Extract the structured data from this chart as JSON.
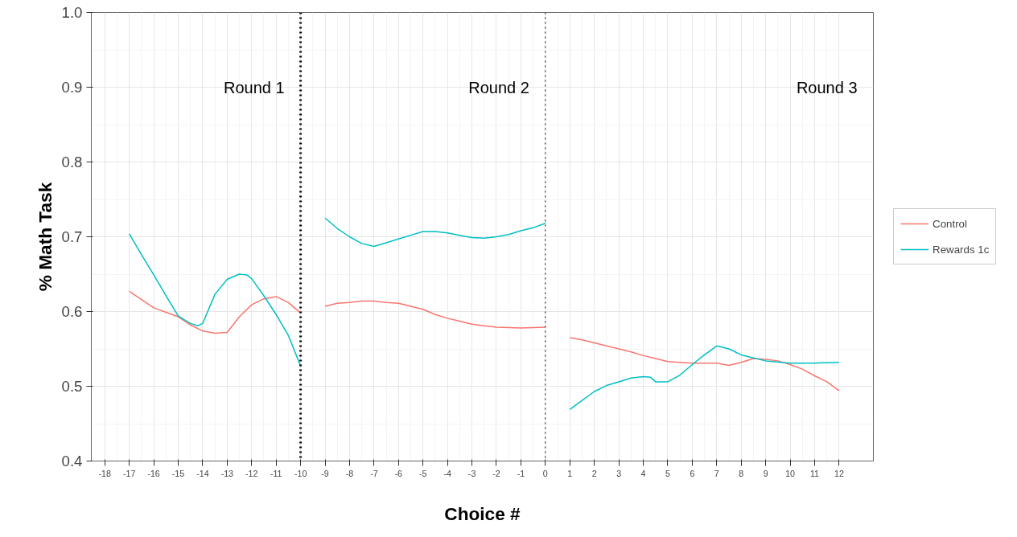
{
  "chart_data": {
    "type": "line",
    "xlabel": "Choice #",
    "ylabel": "% Math Task",
    "xlim": [
      -18.55,
      13.4
    ],
    "ylim": [
      0.4,
      1.0
    ],
    "xticks": [
      -18,
      -17,
      -16,
      -15,
      -14,
      -13,
      -12,
      -11,
      -10,
      -9,
      -8,
      -7,
      -6,
      -5,
      -4,
      -3,
      -2,
      -1,
      0,
      1,
      2,
      3,
      4,
      5,
      6,
      7,
      8,
      9,
      10,
      11,
      12
    ],
    "yticks": [
      {
        "value": 0.4,
        "label": "0.4"
      },
      {
        "value": 0.5,
        "label": "0.5"
      },
      {
        "value": 0.6,
        "label": "0.6"
      },
      {
        "value": 0.7,
        "label": "0.7"
      },
      {
        "value": 0.8,
        "label": "0.8"
      },
      {
        "value": 0.9,
        "label": "0.9"
      },
      {
        "value": 1.0,
        "label": "1.0"
      }
    ],
    "grid": true,
    "legend": "right",
    "line_style": "solid",
    "series": [
      {
        "name": "Control",
        "color": "#f8766d",
        "x": [
          -17,
          -16.5,
          -16,
          -15.5,
          -15,
          -14.5,
          -14,
          -13.5,
          -13,
          -12.5,
          -12,
          -11.5,
          -11,
          -10.5,
          -10,
          -9.5,
          -9,
          -8.5,
          -8,
          -7.5,
          -7,
          -6.5,
          -6,
          -5.5,
          -5,
          -4.5,
          -4,
          -3.5,
          -3,
          -2.5,
          -2,
          -1,
          0,
          0.5,
          1,
          1.5,
          2,
          2.5,
          3,
          3.5,
          4,
          4.5,
          5,
          5.5,
          6,
          7,
          7.5,
          8,
          8.5,
          9,
          9.5,
          10,
          10.5,
          11,
          11.5,
          12
        ],
        "values": [
          0.627,
          0.616,
          0.605,
          0.599,
          0.593,
          0.582,
          0.574,
          0.571,
          0.572,
          0.593,
          0.609,
          0.617,
          0.62,
          0.612,
          0.598,
          null,
          0.607,
          0.611,
          0.612,
          0.614,
          0.614,
          0.612,
          0.611,
          0.607,
          0.603,
          0.596,
          0.591,
          0.587,
          0.583,
          0.581,
          0.579,
          0.578,
          0.579,
          null,
          0.565,
          0.562,
          0.558,
          0.554,
          0.55,
          0.546,
          0.541,
          0.537,
          0.533,
          0.532,
          0.531,
          0.531,
          0.528,
          0.532,
          0.537,
          0.536,
          0.534,
          0.529,
          0.523,
          0.514,
          0.506,
          0.494
        ]
      },
      {
        "name": "Rewards 1c",
        "color": "#00bfc4",
        "x": [
          -17,
          -16.5,
          -16,
          -15.5,
          -15,
          -14.5,
          -14.2,
          -14,
          -13.5,
          -13,
          -12.5,
          -12.2,
          -12,
          -11.5,
          -11,
          -10.5,
          -10,
          -9.5,
          -9,
          -8.5,
          -8,
          -7.5,
          -7,
          -6.5,
          -6,
          -5.5,
          -5,
          -4.5,
          -4,
          -3.5,
          -3,
          -2.5,
          -2,
          -1.5,
          -1,
          -0.5,
          0,
          0.5,
          1,
          1.5,
          2,
          2.5,
          3,
          3.5,
          4,
          4.3,
          4.5,
          5,
          5.5,
          6,
          6.5,
          7,
          7.5,
          8,
          8.5,
          9,
          10,
          11,
          12
        ],
        "values": [
          0.704,
          0.676,
          0.649,
          0.621,
          0.594,
          0.584,
          0.581,
          0.584,
          0.623,
          0.643,
          0.65,
          0.649,
          0.644,
          0.621,
          0.596,
          0.568,
          0.527,
          null,
          0.725,
          0.711,
          0.7,
          0.691,
          0.687,
          0.692,
          0.697,
          0.702,
          0.707,
          0.707,
          0.705,
          0.702,
          0.699,
          0.698,
          0.7,
          0.703,
          0.708,
          0.712,
          0.718,
          null,
          0.469,
          0.481,
          0.493,
          0.501,
          0.506,
          0.511,
          0.513,
          0.512,
          0.506,
          0.506,
          0.515,
          0.529,
          0.542,
          0.554,
          0.55,
          0.542,
          0.538,
          0.534,
          0.531,
          0.531,
          0.532
        ]
      }
    ],
    "ref_lines": [
      {
        "axis": "x",
        "value": -10,
        "line_style": "dotted",
        "color": "#000000"
      },
      {
        "axis": "x",
        "value": 0,
        "line_style": "dotted",
        "color": "#000000"
      }
    ],
    "annotations": [
      "Round 1",
      "Round 2",
      "Round 3"
    ]
  }
}
